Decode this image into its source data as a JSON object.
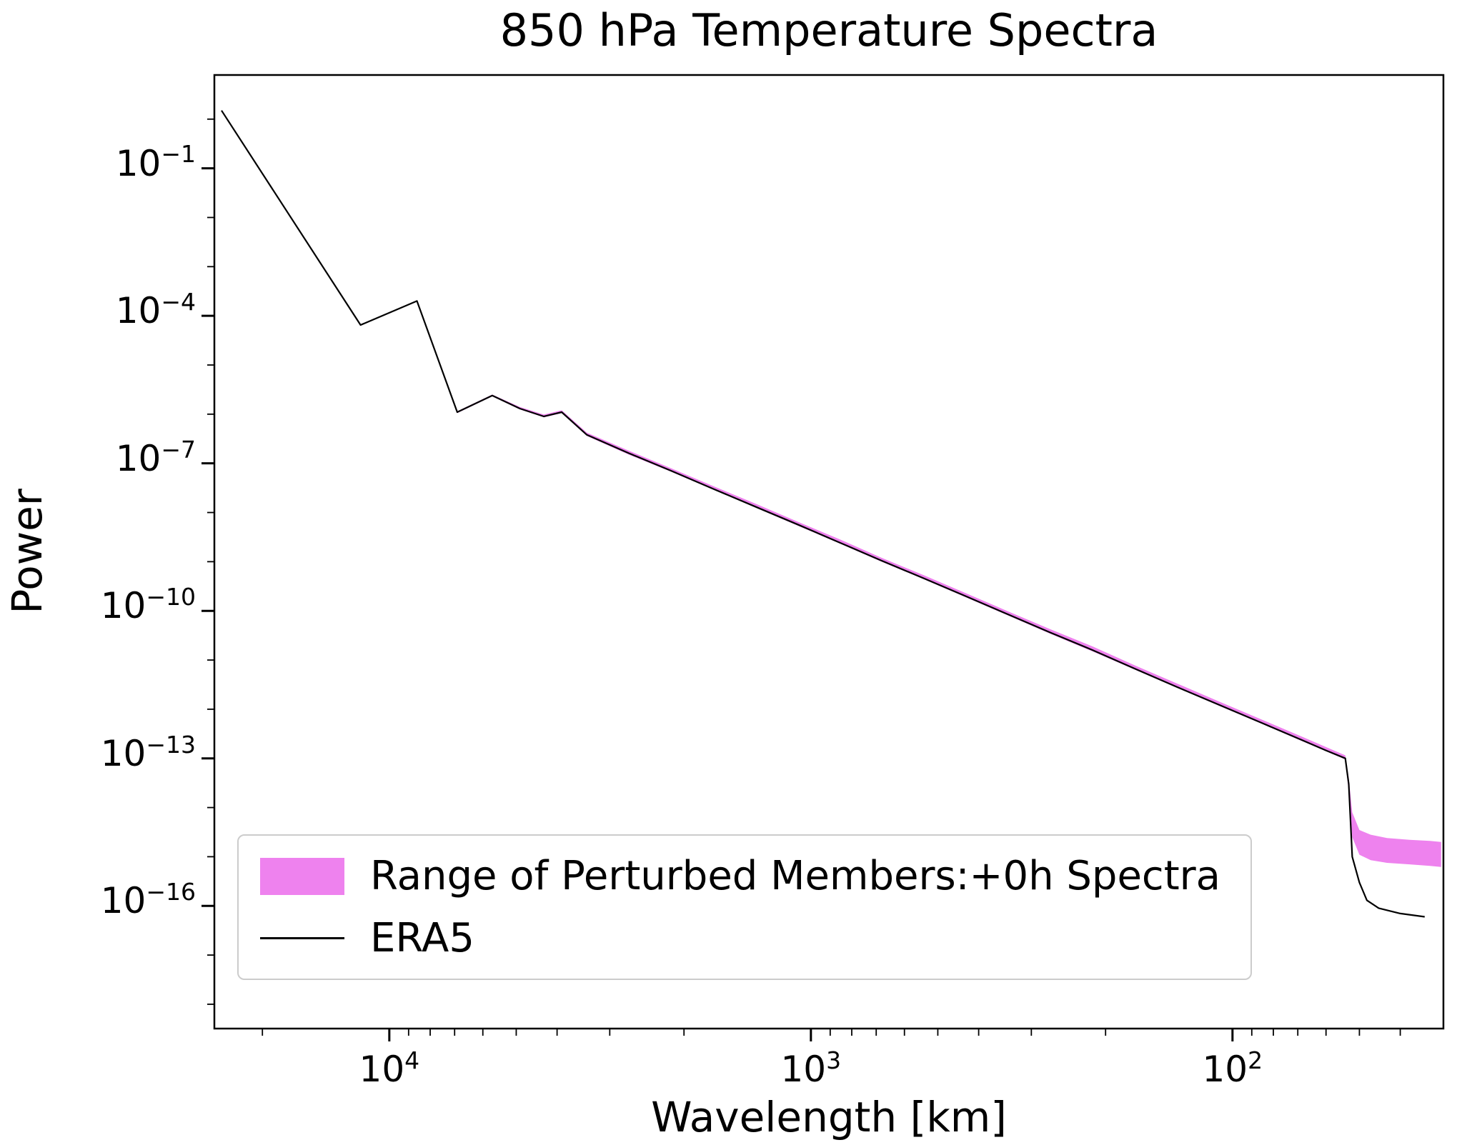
{
  "title": "850 hPa Temperature Spectra",
  "xlabel": "Wavelength [km]",
  "ylabel": "Power",
  "legend": {
    "items": [
      {
        "type": "patch",
        "label": "Range of Perturbed Members:+0h Spectra"
      },
      {
        "type": "line",
        "label": "ERA5"
      }
    ]
  },
  "colors": {
    "band": "#EE82EE",
    "era5_line": "#000000",
    "spine": "#000000",
    "background": "#ffffff",
    "legend_border": "#cccccc"
  },
  "chart_data": {
    "type": "line",
    "x_scale": "log",
    "y_scale": "log",
    "x_inverted": true,
    "grid": false,
    "legend_position": "lower left",
    "xlim": [
      26000,
      31.6
    ],
    "ylim": [
      3.2e-19,
      7.9
    ],
    "x_tick_exponents": [
      4,
      3,
      2
    ],
    "y_tick_exponents": [
      -1,
      -4,
      -7,
      -10,
      -13,
      -16
    ],
    "series": [
      {
        "name": "ERA5",
        "color": "#000000",
        "x": [
          25000,
          11700,
          8600,
          6900,
          5700,
          4900,
          4300,
          3900,
          3400,
          2700,
          2150,
          1700,
          1350,
          1075,
          850,
          680,
          540,
          430,
          340,
          270,
          215,
          170,
          135,
          107,
          85,
          68,
          60,
          54,
          53,
          52,
          50,
          48,
          45,
          40,
          35
        ],
        "y": [
          1.5,
          6.5e-05,
          0.0002,
          1.1e-06,
          2.4e-06,
          1.3e-06,
          9e-07,
          1.1e-06,
          3.8e-07,
          1.6e-07,
          7.1e-08,
          3e-08,
          1.3e-08,
          5.7e-09,
          2.4e-09,
          1.05e-09,
          4.6e-10,
          2e-10,
          8.4e-11,
          3.6e-11,
          1.6e-11,
          6.6e-12,
          2.8e-12,
          1.2e-12,
          5.2e-13,
          2.3e-13,
          1.45e-13,
          1e-13,
          3e-14,
          1e-15,
          3e-16,
          1.3e-16,
          9e-17,
          7e-17,
          6e-17
        ]
      }
    ],
    "band": {
      "name": "Range of Perturbed Members:+0h Spectra",
      "color": "#EE82EE",
      "x": [
        25000,
        11700,
        8600,
        6900,
        5700,
        4900,
        4300,
        3900,
        3400,
        2700,
        2150,
        1700,
        1350,
        1075,
        850,
        680,
        540,
        430,
        340,
        270,
        215,
        170,
        135,
        107,
        85,
        68,
        60,
        54,
        53,
        52,
        50,
        47,
        43,
        38,
        34,
        32
      ],
      "ymax": [
        1.5,
        6.5e-05,
        0.0002,
        1.15e-06,
        2.5e-06,
        1.4e-06,
        9.8e-07,
        1.2e-06,
        4.2e-07,
        1.8e-07,
        8e-08,
        3.4e-08,
        1.5e-08,
        6.5e-09,
        2.8e-09,
        1.2e-09,
        5.3e-10,
        2.3e-10,
        9.7e-11,
        4.2e-11,
        1.9e-11,
        7.7e-12,
        3.3e-12,
        1.4e-12,
        6.1e-13,
        2.7e-13,
        1.7e-13,
        1.15e-13,
        4e-14,
        8e-15,
        3.5e-15,
        2.8e-15,
        2.4e-15,
        2.2e-15,
        2.1e-15,
        2e-15
      ],
      "ymin": [
        1.5,
        6.4e-05,
        0.000195,
        1.05e-06,
        2.3e-06,
        1.25e-06,
        8.6e-07,
        1.05e-06,
        3.6e-07,
        1.5e-07,
        6.8e-08,
        2.9e-08,
        1.25e-08,
        5.4e-09,
        2.3e-09,
        1e-09,
        4.4e-10,
        1.9e-10,
        8e-11,
        3.4e-11,
        1.5e-11,
        6.3e-12,
        2.7e-12,
        1.15e-12,
        5e-13,
        2.2e-13,
        1.4e-13,
        9.5e-14,
        2e-14,
        2.5e-15,
        1.1e-15,
        8.5e-16,
        7.5e-16,
        7e-16,
        6.5e-16,
        6.2e-16
      ]
    }
  }
}
